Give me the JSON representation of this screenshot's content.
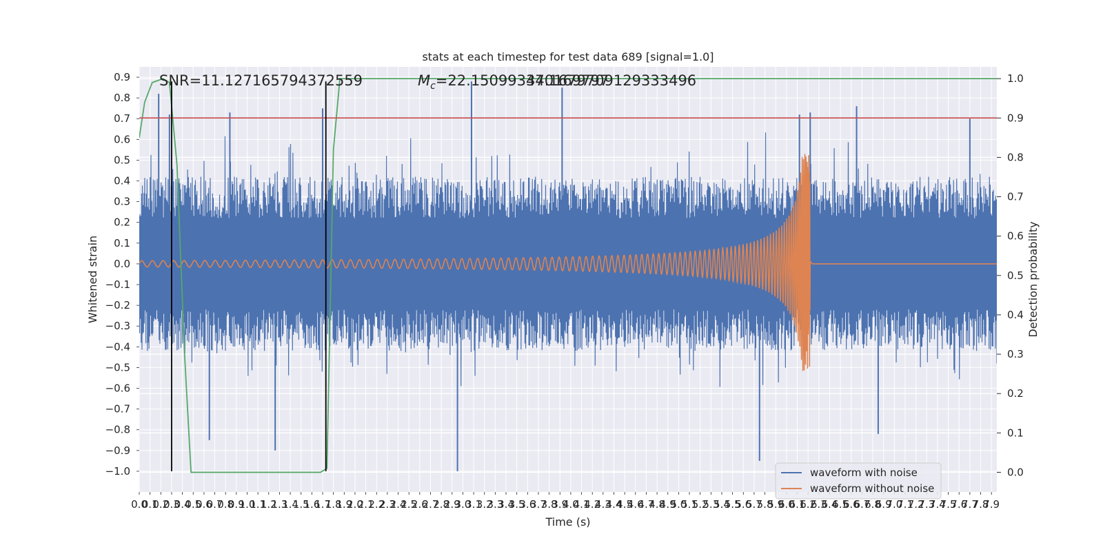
{
  "chart_data": {
    "type": "line",
    "title": "stats at each timestep for test data 689 [signal=1.0]",
    "xlabel": "Time (s)",
    "ylabel": "Whitened strain",
    "y2label": "Detection probability",
    "xlim": [
      0.0,
      7.95
    ],
    "ylim": [
      -1.1,
      0.95
    ],
    "y2lim": [
      -0.05,
      1.03
    ],
    "x_ticks": [
      0.0,
      0.1,
      0.2,
      0.3,
      0.4,
      0.5,
      0.6,
      0.7,
      0.8,
      0.9,
      1.0,
      1.1,
      1.2,
      1.3,
      1.4,
      1.5,
      1.6,
      1.7,
      1.8,
      1.9,
      2.0,
      2.1,
      2.2,
      2.3,
      2.4,
      2.5,
      2.6,
      2.7,
      2.8,
      2.9,
      3.0,
      3.1,
      3.2,
      3.3,
      3.4,
      3.5,
      3.6,
      3.7,
      3.8,
      3.9,
      4.0,
      4.1,
      4.2,
      4.3,
      4.4,
      4.5,
      4.6,
      4.7,
      4.8,
      4.9,
      5.0,
      5.1,
      5.2,
      5.3,
      5.4,
      5.5,
      5.6,
      5.7,
      5.8,
      5.9,
      6.0,
      6.1,
      6.2,
      6.3,
      6.4,
      6.5,
      6.6,
      6.7,
      6.8,
      6.9,
      7.0,
      7.1,
      7.2,
      7.3,
      7.4,
      7.5,
      7.6,
      7.7,
      7.8,
      7.9
    ],
    "y_ticks": [
      0.9,
      0.8,
      0.7,
      0.6,
      0.5,
      0.4,
      0.3,
      0.2,
      0.1,
      0.0,
      -0.1,
      -0.2,
      -0.3,
      -0.4,
      -0.5,
      -0.6,
      -0.7,
      -0.8,
      -0.9,
      -1.0
    ],
    "y2_ticks": [
      1.0,
      0.9,
      0.8,
      0.7,
      0.6,
      0.5,
      0.4,
      0.3,
      0.2,
      0.1,
      0.0
    ],
    "grid": true,
    "legend_position": "lower right",
    "annotations": {
      "snr": "SNR=11.127165794372559",
      "mc": "=22.150993470169797",
      "mc_symbol": "M",
      "mc_sub": "c",
      "overlap": "34.1679709129333496"
    },
    "series": [
      {
        "name": "waveform with noise",
        "color": "#4c72b0",
        "description_values": "noise band roughly within [-0.45, 0.45] with spikes reaching 0.9 and -1.0",
        "spike_points": [
          [
            0.18,
            0.82
          ],
          [
            0.28,
            0.72
          ],
          [
            0.65,
            -0.85
          ],
          [
            0.84,
            0.73
          ],
          [
            1.26,
            -0.9
          ],
          [
            1.7,
            0.75
          ],
          [
            2.95,
            -1.0
          ],
          [
            3.08,
            0.88
          ],
          [
            3.92,
            0.85
          ],
          [
            5.75,
            -0.95
          ],
          [
            6.12,
            0.72
          ],
          [
            6.22,
            0.73
          ],
          [
            6.65,
            0.76
          ],
          [
            6.85,
            -0.82
          ],
          [
            7.7,
            0.7
          ]
        ]
      },
      {
        "name": "waveform without noise",
        "color": "#dd8452",
        "chirp_start": 0.0,
        "merger_time": 6.22,
        "start_amplitude": 0.015,
        "peak_amplitude": 0.53,
        "end_value": 0.0
      },
      {
        "name": "",
        "color": "#55a868",
        "axis": "y2",
        "x": [
          0.0,
          0.05,
          0.12,
          0.22,
          0.28,
          0.35,
          0.42,
          0.48,
          1.68,
          1.74,
          1.8,
          1.86,
          7.95
        ],
        "values": [
          0.85,
          0.94,
          0.99,
          1.0,
          0.99,
          0.78,
          0.3,
          0.0,
          0.0,
          0.01,
          0.82,
          1.0,
          1.0
        ]
      },
      {
        "name": "",
        "color": "#c44e52",
        "axis": "y2",
        "x": [
          0.0,
          7.95
        ],
        "values": [
          0.9,
          0.9
        ]
      }
    ],
    "vlines": [
      {
        "x": 0.3,
        "y_range": [
          -1.0,
          0.88
        ],
        "color": "#000000"
      },
      {
        "x": 1.73,
        "y_range": [
          -1.0,
          0.88
        ],
        "color": "#000000"
      }
    ],
    "plot_bg": "#eaeaf2",
    "grid_color": "#ffffff"
  }
}
